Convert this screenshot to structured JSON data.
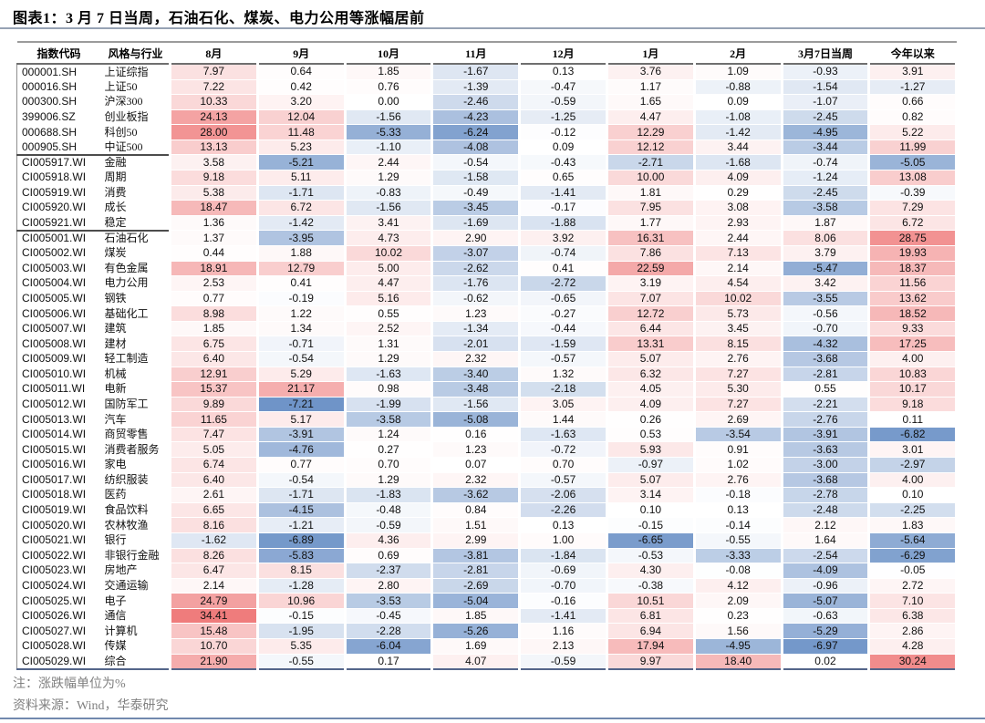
{
  "title": "图表1：3 月 7 日当周，石油石化、煤炭、电力公用等涨幅居前",
  "notes": {
    "unit_note": "注：涨跌幅单位为%",
    "source_note": "资料来源：Wind，华泰研究"
  },
  "chart_data": {
    "type": "heatmap",
    "title": "3月7日当周，石油石化、煤炭、电力公用等涨幅居前",
    "unit": "%",
    "columns": [
      "指数代码",
      "风格与行业",
      "8月",
      "9月",
      "10月",
      "11月",
      "12月",
      "1月",
      "2月",
      "3月7日当周",
      "今年以来"
    ],
    "colors": {
      "positive_max": "#ef7c7c",
      "negative_max": "#6f94c8",
      "midpoint": "#ffffff"
    },
    "scale": {
      "min": -7.21,
      "max": 34.41
    },
    "group_breaks_after": [
      "000905.SH",
      "CI005921.WI"
    ],
    "rows": [
      {
        "code": "000001.SH",
        "name": "上证综指",
        "values": [
          "7.97",
          "0.64",
          "1.85",
          "-1.67",
          "0.13",
          "3.76",
          "1.09",
          "-0.93",
          "3.91"
        ]
      },
      {
        "code": "000016.SH",
        "name": "上证50",
        "values": [
          "7.22",
          "0.42",
          "0.76",
          "-1.39",
          "-0.47",
          "1.17",
          "-0.88",
          "-1.54",
          "-1.27"
        ]
      },
      {
        "code": "000300.SH",
        "name": "沪深300",
        "values": [
          "10.33",
          "3.20",
          "0.00",
          "-2.46",
          "-0.59",
          "1.65",
          "0.09",
          "-1.07",
          "0.66"
        ]
      },
      {
        "code": "399006.SZ",
        "name": "创业板指",
        "values": [
          "24.13",
          "12.04",
          "-1.56",
          "-4.23",
          "-1.25",
          "4.47",
          "-1.08",
          "-2.45",
          "0.82"
        ]
      },
      {
        "code": "000688.SH",
        "name": "科创50",
        "values": [
          "28.00",
          "11.48",
          "-5.33",
          "-6.24",
          "-0.12",
          "12.29",
          "-1.42",
          "-4.95",
          "5.22"
        ]
      },
      {
        "code": "000905.SH",
        "name": "中证500",
        "values": [
          "13.13",
          "5.23",
          "-1.10",
          "-4.08",
          "0.09",
          "12.12",
          "3.44",
          "-3.44",
          "11.99"
        ]
      },
      {
        "code": "CI005917.WI",
        "name": "金融",
        "values": [
          "3.58",
          "-5.21",
          "2.44",
          "-0.54",
          "-0.43",
          "-2.71",
          "-1.68",
          "-0.74",
          "-5.05"
        ]
      },
      {
        "code": "CI005918.WI",
        "name": "周期",
        "values": [
          "9.18",
          "5.11",
          "1.29",
          "-1.58",
          "0.65",
          "10.00",
          "4.09",
          "-1.24",
          "13.08"
        ]
      },
      {
        "code": "CI005919.WI",
        "name": "消费",
        "values": [
          "5.38",
          "-1.71",
          "-0.83",
          "-0.49",
          "-1.41",
          "1.81",
          "0.29",
          "-2.45",
          "-0.39"
        ]
      },
      {
        "code": "CI005920.WI",
        "name": "成长",
        "values": [
          "18.47",
          "6.72",
          "-1.56",
          "-3.45",
          "-0.17",
          "7.95",
          "3.08",
          "-3.58",
          "7.29"
        ]
      },
      {
        "code": "CI005921.WI",
        "name": "稳定",
        "values": [
          "1.36",
          "-1.42",
          "3.41",
          "-1.69",
          "-1.88",
          "1.77",
          "2.93",
          "1.87",
          "6.72"
        ]
      },
      {
        "code": "CI005001.WI",
        "name": "石油石化",
        "values": [
          "1.37",
          "-3.95",
          "4.73",
          "2.90",
          "3.92",
          "16.31",
          "2.44",
          "8.06",
          "28.75"
        ]
      },
      {
        "code": "CI005002.WI",
        "name": "煤炭",
        "values": [
          "0.44",
          "1.88",
          "10.02",
          "-3.07",
          "-0.74",
          "7.86",
          "7.13",
          "3.79",
          "19.93"
        ]
      },
      {
        "code": "CI005003.WI",
        "name": "有色金属",
        "values": [
          "18.91",
          "12.79",
          "5.00",
          "-2.62",
          "0.41",
          "22.59",
          "2.14",
          "-5.47",
          "18.37"
        ]
      },
      {
        "code": "CI005004.WI",
        "name": "电力公用",
        "values": [
          "2.53",
          "0.41",
          "4.47",
          "-1.76",
          "-2.72",
          "3.19",
          "4.54",
          "3.42",
          "11.56"
        ]
      },
      {
        "code": "CI005005.WI",
        "name": "钢铁",
        "values": [
          "0.77",
          "-0.19",
          "5.16",
          "-0.62",
          "-0.65",
          "7.07",
          "10.02",
          "-3.55",
          "13.62"
        ]
      },
      {
        "code": "CI005006.WI",
        "name": "基础化工",
        "values": [
          "8.98",
          "1.22",
          "0.55",
          "1.23",
          "-0.27",
          "12.72",
          "5.73",
          "-0.56",
          "18.52"
        ]
      },
      {
        "code": "CI005007.WI",
        "name": "建筑",
        "values": [
          "1.85",
          "1.34",
          "2.52",
          "-1.34",
          "-0.44",
          "6.44",
          "3.45",
          "-0.70",
          "9.33"
        ]
      },
      {
        "code": "CI005008.WI",
        "name": "建材",
        "values": [
          "6.75",
          "-0.71",
          "1.31",
          "-2.01",
          "-1.59",
          "13.31",
          "8.15",
          "-4.32",
          "17.25"
        ]
      },
      {
        "code": "CI005009.WI",
        "name": "轻工制造",
        "values": [
          "6.40",
          "-0.54",
          "1.29",
          "2.32",
          "-0.57",
          "5.07",
          "2.76",
          "-3.68",
          "4.00"
        ]
      },
      {
        "code": "CI005010.WI",
        "name": "机械",
        "values": [
          "12.91",
          "5.29",
          "-1.63",
          "-3.40",
          "1.32",
          "6.32",
          "7.27",
          "-2.81",
          "10.83"
        ]
      },
      {
        "code": "CI005011.WI",
        "name": "电新",
        "values": [
          "15.37",
          "21.17",
          "0.98",
          "-3.48",
          "-2.18",
          "4.05",
          "5.30",
          "0.55",
          "10.17"
        ]
      },
      {
        "code": "CI005012.WI",
        "name": "国防军工",
        "values": [
          "9.89",
          "-7.21",
          "-1.99",
          "-1.56",
          "3.05",
          "4.09",
          "7.27",
          "-2.21",
          "9.18"
        ]
      },
      {
        "code": "CI005013.WI",
        "name": "汽车",
        "values": [
          "11.65",
          "5.17",
          "-3.58",
          "-5.08",
          "1.44",
          "0.26",
          "2.69",
          "-2.76",
          "0.11"
        ]
      },
      {
        "code": "CI005014.WI",
        "name": "商贸零售",
        "values": [
          "7.47",
          "-3.91",
          "1.24",
          "0.16",
          "-1.63",
          "0.53",
          "-3.54",
          "-3.91",
          "-6.82"
        ]
      },
      {
        "code": "CI005015.WI",
        "name": "消费者服务",
        "values": [
          "5.05",
          "-4.76",
          "0.27",
          "1.23",
          "-0.72",
          "5.93",
          "0.91",
          "-3.63",
          "3.01"
        ]
      },
      {
        "code": "CI005016.WI",
        "name": "家电",
        "values": [
          "6.74",
          "0.77",
          "0.70",
          "0.07",
          "0.70",
          "-0.97",
          "1.02",
          "-3.00",
          "-2.97"
        ]
      },
      {
        "code": "CI005017.WI",
        "name": "纺织服装",
        "values": [
          "6.40",
          "-0.54",
          "1.29",
          "2.32",
          "-0.57",
          "5.07",
          "2.76",
          "-3.68",
          "4.00"
        ]
      },
      {
        "code": "CI005018.WI",
        "name": "医药",
        "values": [
          "2.61",
          "-1.71",
          "-1.83",
          "-3.62",
          "-2.06",
          "3.14",
          "-0.18",
          "-2.78",
          "0.10"
        ]
      },
      {
        "code": "CI005019.WI",
        "name": "食品饮料",
        "values": [
          "6.65",
          "-4.15",
          "-0.48",
          "0.84",
          "-2.26",
          "0.10",
          "0.13",
          "-2.48",
          "-2.25"
        ]
      },
      {
        "code": "CI005020.WI",
        "name": "农林牧渔",
        "values": [
          "8.16",
          "-1.21",
          "-0.59",
          "1.51",
          "0.13",
          "-0.15",
          "-0.14",
          "2.12",
          "1.83"
        ]
      },
      {
        "code": "CI005021.WI",
        "name": "银行",
        "values": [
          "-1.62",
          "-6.89",
          "4.36",
          "2.99",
          "1.00",
          "-6.65",
          "-0.55",
          "1.64",
          "-5.64"
        ]
      },
      {
        "code": "CI005022.WI",
        "name": "非银行金融",
        "values": [
          "8.26",
          "-5.83",
          "0.69",
          "-3.81",
          "-1.84",
          "-0.53",
          "-3.33",
          "-2.54",
          "-6.29"
        ]
      },
      {
        "code": "CI005023.WI",
        "name": "房地产",
        "values": [
          "6.47",
          "8.15",
          "-2.37",
          "-2.81",
          "-0.69",
          "4.30",
          "-0.08",
          "-4.09",
          "-0.05"
        ]
      },
      {
        "code": "CI005024.WI",
        "name": "交通运输",
        "values": [
          "2.14",
          "-1.28",
          "2.80",
          "-2.69",
          "-0.70",
          "-0.38",
          "4.12",
          "-0.96",
          "2.72"
        ]
      },
      {
        "code": "CI005025.WI",
        "name": "电子",
        "values": [
          "24.79",
          "10.96",
          "-3.53",
          "-5.04",
          "-0.16",
          "10.51",
          "2.09",
          "-5.07",
          "7.10"
        ]
      },
      {
        "code": "CI005026.WI",
        "name": "通信",
        "values": [
          "34.41",
          "-0.15",
          "-0.45",
          "1.85",
          "-1.41",
          "6.81",
          "0.23",
          "-0.63",
          "6.38"
        ]
      },
      {
        "code": "CI005027.WI",
        "name": "计算机",
        "values": [
          "15.48",
          "-1.95",
          "-2.28",
          "-5.26",
          "1.16",
          "6.94",
          "1.56",
          "-5.29",
          "2.86"
        ]
      },
      {
        "code": "CI005028.WI",
        "name": "传媒",
        "values": [
          "10.70",
          "5.35",
          "-6.04",
          "1.69",
          "2.13",
          "17.94",
          "-4.95",
          "-6.97",
          "4.28"
        ]
      },
      {
        "code": "CI005029.WI",
        "name": "综合",
        "values": [
          "21.90",
          "-0.55",
          "0.17",
          "4.07",
          "-0.59",
          "9.97",
          "18.40",
          "0.02",
          "30.24"
        ]
      }
    ]
  }
}
